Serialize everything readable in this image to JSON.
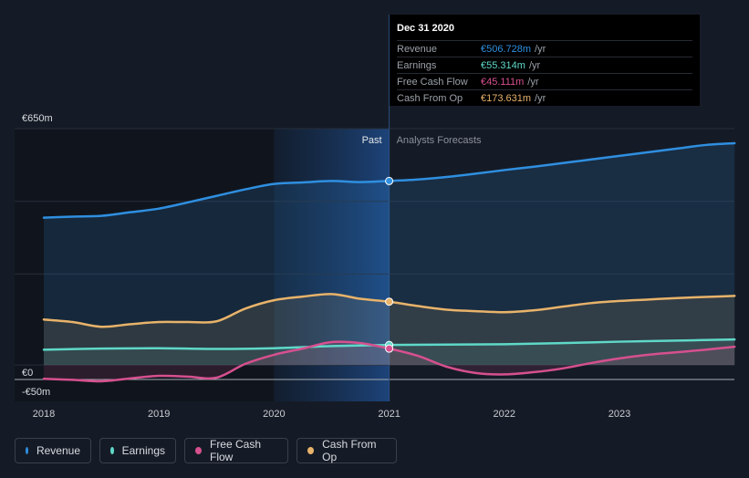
{
  "chart_data": {
    "type": "area",
    "y_labels": {
      "top": "€650m",
      "zero": "€0",
      "bottom": "-€50m"
    },
    "ylim": [
      -50,
      650
    ],
    "x_ticks": [
      "2018",
      "2019",
      "2020",
      "2021",
      "2022",
      "2023"
    ],
    "past_label": "Past",
    "forecast_label": "Analysts Forecasts",
    "series": [
      {
        "name": "Revenue",
        "color": "#2f8fe0",
        "points": [
          [
            2018.0,
            405
          ],
          [
            2018.25,
            408
          ],
          [
            2018.5,
            410
          ],
          [
            2018.75,
            420
          ],
          [
            2019.0,
            430
          ],
          [
            2019.25,
            447
          ],
          [
            2019.5,
            465
          ],
          [
            2019.75,
            483
          ],
          [
            2020.0,
            498
          ],
          [
            2020.25,
            502
          ],
          [
            2020.5,
            506
          ],
          [
            2020.75,
            503
          ],
          [
            2021.0,
            506
          ],
          [
            2021.25,
            510
          ],
          [
            2021.5,
            517
          ],
          [
            2021.75,
            526
          ],
          [
            2022.0,
            536
          ],
          [
            2022.25,
            545
          ],
          [
            2022.5,
            555
          ],
          [
            2022.75,
            565
          ],
          [
            2023.0,
            575
          ],
          [
            2023.25,
            585
          ],
          [
            2023.5,
            595
          ],
          [
            2023.75,
            605
          ],
          [
            2024.0,
            610
          ]
        ]
      },
      {
        "name": "Earnings",
        "color": "#5fd8c8",
        "points": [
          [
            2018.0,
            42
          ],
          [
            2018.5,
            45
          ],
          [
            2019.0,
            46
          ],
          [
            2019.5,
            44
          ],
          [
            2020.0,
            46
          ],
          [
            2020.5,
            52
          ],
          [
            2021.0,
            55
          ],
          [
            2021.5,
            56
          ],
          [
            2022.0,
            57
          ],
          [
            2022.5,
            60
          ],
          [
            2023.0,
            64
          ],
          [
            2023.5,
            67
          ],
          [
            2024.0,
            70
          ]
        ]
      },
      {
        "name": "Free Cash Flow",
        "color": "#d6508f",
        "points": [
          [
            2018.0,
            -38
          ],
          [
            2018.25,
            -41
          ],
          [
            2018.5,
            -45
          ],
          [
            2018.75,
            -37
          ],
          [
            2019.0,
            -30
          ],
          [
            2019.25,
            -32
          ],
          [
            2019.5,
            -35
          ],
          [
            2019.75,
            3
          ],
          [
            2020.0,
            28
          ],
          [
            2020.25,
            45
          ],
          [
            2020.5,
            63
          ],
          [
            2020.75,
            60
          ],
          [
            2021.0,
            45
          ],
          [
            2021.25,
            25
          ],
          [
            2021.5,
            -5
          ],
          [
            2021.75,
            -22
          ],
          [
            2022.0,
            -26
          ],
          [
            2022.25,
            -20
          ],
          [
            2022.5,
            -10
          ],
          [
            2022.75,
            5
          ],
          [
            2023.0,
            18
          ],
          [
            2023.25,
            28
          ],
          [
            2023.5,
            35
          ],
          [
            2023.75,
            42
          ],
          [
            2024.0,
            50
          ]
        ]
      },
      {
        "name": "Cash From Op",
        "color": "#e8b36a",
        "points": [
          [
            2018.0,
            125
          ],
          [
            2018.25,
            118
          ],
          [
            2018.5,
            105
          ],
          [
            2018.75,
            112
          ],
          [
            2019.0,
            118
          ],
          [
            2019.25,
            118
          ],
          [
            2019.5,
            120
          ],
          [
            2019.75,
            155
          ],
          [
            2020.0,
            178
          ],
          [
            2020.25,
            188
          ],
          [
            2020.5,
            195
          ],
          [
            2020.75,
            182
          ],
          [
            2021.0,
            174
          ],
          [
            2021.25,
            162
          ],
          [
            2021.5,
            152
          ],
          [
            2021.75,
            148
          ],
          [
            2022.0,
            145
          ],
          [
            2022.25,
            150
          ],
          [
            2022.5,
            160
          ],
          [
            2022.75,
            170
          ],
          [
            2023.0,
            176
          ],
          [
            2023.25,
            180
          ],
          [
            2023.5,
            184
          ],
          [
            2023.75,
            187
          ],
          [
            2024.0,
            190
          ]
        ]
      }
    ]
  },
  "tooltip": {
    "date": "Dec 31 2020",
    "rows": [
      {
        "label": "Revenue",
        "value": "€506.728m",
        "unit": "/yr",
        "color": "#2f8fe0"
      },
      {
        "label": "Earnings",
        "value": "€55.314m",
        "unit": "/yr",
        "color": "#5fd8c8"
      },
      {
        "label": "Free Cash Flow",
        "value": "€45.111m",
        "unit": "/yr",
        "color": "#d6508f"
      },
      {
        "label": "Cash From Op",
        "value": "€173.631m",
        "unit": "/yr",
        "color": "#e8b36a"
      }
    ]
  },
  "legend": [
    {
      "label": "Revenue",
      "color": "#2f8fe0"
    },
    {
      "label": "Earnings",
      "color": "#5fd8c8"
    },
    {
      "label": "Free Cash Flow",
      "color": "#d6508f"
    },
    {
      "label": "Cash From Op",
      "color": "#e8b36a"
    }
  ]
}
